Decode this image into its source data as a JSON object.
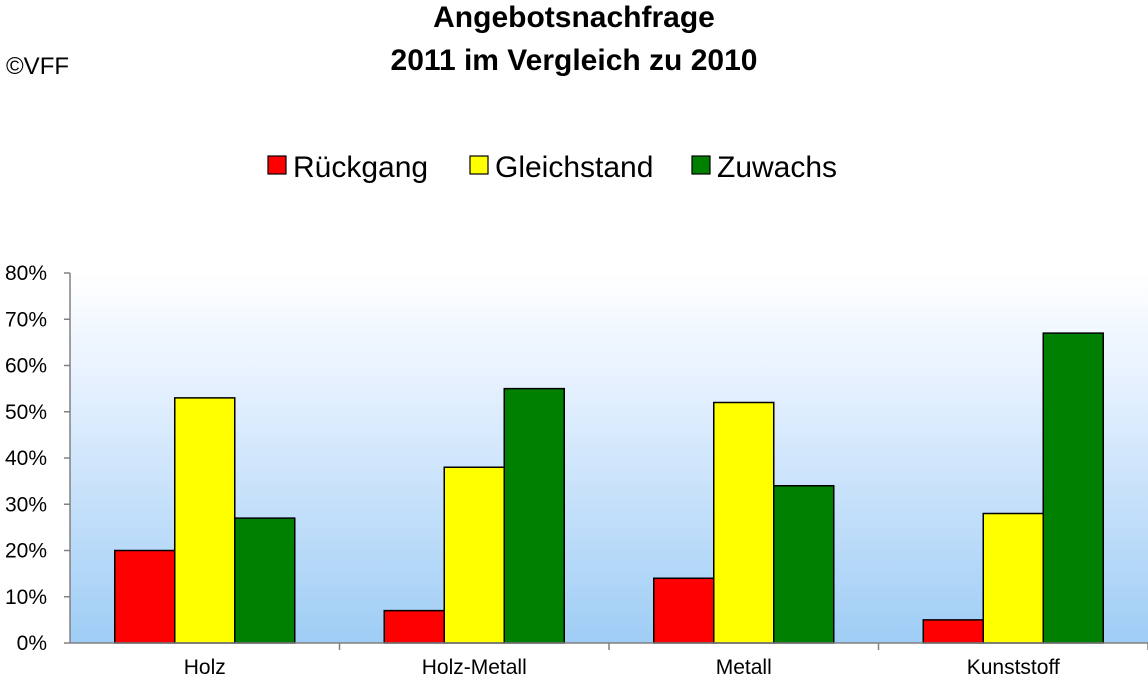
{
  "copyright": "©VFF",
  "chart_data": {
    "type": "bar",
    "title_lines": [
      "Angebotsnachfrage",
      "2011 im Vergleich zu 2010"
    ],
    "categories": [
      "Holz",
      "Holz-Metall",
      "Metall",
      "Kunststoff"
    ],
    "series": [
      {
        "name": "Rückgang",
        "color": "#ff0000",
        "values": [
          20,
          7,
          14,
          5
        ]
      },
      {
        "name": "Gleichstand",
        "color": "#ffff00",
        "values": [
          53,
          38,
          52,
          28
        ]
      },
      {
        "name": "Zuwachs",
        "color": "#008000",
        "values": [
          27,
          55,
          34,
          67
        ]
      }
    ],
    "ylim": [
      0,
      80
    ],
    "yticks": [
      "0%",
      "10%",
      "20%",
      "30%",
      "40%",
      "50%",
      "60%",
      "70%",
      "80%"
    ],
    "legend_position": "top",
    "grid": false,
    "plot_background": "gradient white to light blue"
  }
}
